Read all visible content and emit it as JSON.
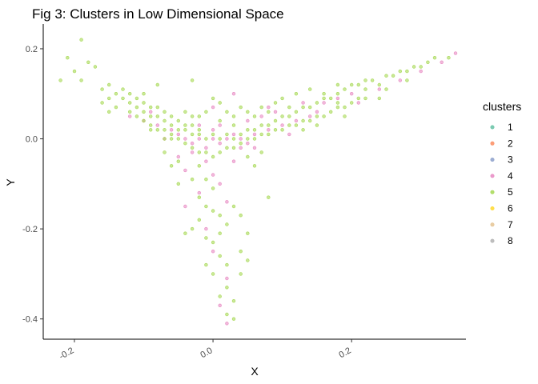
{
  "chart_data": {
    "type": "scatter",
    "title": "Fig 3: Clusters in Low Dimensional Space",
    "xlabel": "X",
    "ylabel": "Y",
    "xlim": [
      -0.245,
      0.365
    ],
    "ylim": [
      -0.445,
      0.255
    ],
    "x_ticks": [
      {
        "value": -0.2,
        "label": "-0.2"
      },
      {
        "value": 0.0,
        "label": "0.0"
      },
      {
        "value": 0.2,
        "label": "0.2"
      }
    ],
    "y_ticks": [
      {
        "value": 0.2,
        "label": "0.2"
      },
      {
        "value": 0.0,
        "label": "0.0"
      },
      {
        "value": -0.2,
        "label": "-0.2"
      },
      {
        "value": -0.4,
        "label": "-0.4"
      }
    ],
    "grid": false,
    "legend": {
      "title": "clusters",
      "placement": "right",
      "entries": [
        {
          "label": "1",
          "color": "#66c2a5"
        },
        {
          "label": "2",
          "color": "#fc8d62"
        },
        {
          "label": "3",
          "color": "#8da0cb"
        },
        {
          "label": "4",
          "color": "#e78ac3"
        },
        {
          "label": "5",
          "color": "#a6d854"
        },
        {
          "label": "6",
          "color": "#ffd92f"
        },
        {
          "label": "7",
          "color": "#e5c494"
        },
        {
          "label": "8",
          "color": "#b3b3b3"
        }
      ]
    },
    "series": [
      {
        "name": "4",
        "color": "#e78ac3",
        "points": [
          [
            -0.12,
            0.05
          ],
          [
            -0.1,
            0.04
          ],
          [
            -0.08,
            0.03
          ],
          [
            -0.06,
            0.02
          ],
          [
            -0.05,
            0.01
          ],
          [
            -0.04,
            0.0
          ],
          [
            -0.03,
            -0.01
          ],
          [
            -0.02,
            0.0
          ],
          [
            -0.01,
            -0.02
          ],
          [
            0.0,
            0.0
          ],
          [
            0.01,
            -0.01
          ],
          [
            0.02,
            0.0
          ],
          [
            0.03,
            0.01
          ],
          [
            0.04,
            0.0
          ],
          [
            0.05,
            -0.01
          ],
          [
            0.06,
            0.01
          ],
          [
            0.08,
            0.02
          ],
          [
            0.1,
            0.03
          ],
          [
            0.12,
            0.04
          ],
          [
            0.14,
            0.05
          ],
          [
            0.16,
            0.08
          ],
          [
            0.18,
            0.09
          ],
          [
            0.2,
            0.1
          ],
          [
            0.24,
            0.11
          ],
          [
            0.27,
            0.13
          ],
          [
            0.3,
            0.15
          ],
          [
            0.33,
            0.17
          ],
          [
            0.35,
            0.19
          ],
          [
            0.03,
            0.1
          ],
          [
            0.0,
            0.07
          ],
          [
            -0.02,
            0.03
          ],
          [
            0.05,
            0.04
          ],
          [
            0.07,
            0.05
          ],
          [
            0.09,
            0.06
          ],
          [
            -0.01,
            -0.05
          ],
          [
            0.0,
            -0.08
          ],
          [
            -0.02,
            -0.12
          ],
          [
            -0.04,
            -0.15
          ],
          [
            0.01,
            -0.1
          ],
          [
            0.02,
            -0.14
          ],
          [
            -0.01,
            -0.2
          ],
          [
            0.0,
            -0.25
          ],
          [
            0.02,
            -0.31
          ],
          [
            0.01,
            -0.37
          ],
          [
            0.02,
            -0.41
          ],
          [
            -0.03,
            -0.03
          ],
          [
            0.04,
            -0.02
          ],
          [
            0.11,
            0.01
          ],
          [
            -0.07,
            0.0
          ],
          [
            0.06,
            -0.02
          ],
          [
            0.13,
            0.08
          ],
          [
            -0.09,
            0.06
          ],
          [
            0.15,
            0.06
          ],
          [
            0.21,
            0.08
          ],
          [
            0.08,
            0.07
          ],
          [
            -0.05,
            -0.04
          ],
          [
            0.03,
            -0.05
          ],
          [
            0.0,
            0.02
          ],
          [
            0.01,
            0.03
          ],
          [
            -0.04,
            -0.07
          ]
        ]
      },
      {
        "name": "5",
        "color": "#a6d854",
        "points": [
          [
            -0.21,
            0.18
          ],
          [
            -0.19,
            0.22
          ],
          [
            -0.2,
            0.15
          ],
          [
            -0.18,
            0.17
          ],
          [
            -0.16,
            0.11
          ],
          [
            -0.19,
            0.13
          ],
          [
            -0.22,
            0.13
          ],
          [
            -0.17,
            0.16
          ],
          [
            -0.15,
            0.12
          ],
          [
            -0.14,
            0.1
          ],
          [
            -0.13,
            0.09
          ],
          [
            -0.12,
            0.08
          ],
          [
            -0.11,
            0.07
          ],
          [
            -0.1,
            0.06
          ],
          [
            -0.09,
            0.05
          ],
          [
            -0.08,
            0.05
          ],
          [
            -0.07,
            0.04
          ],
          [
            -0.06,
            0.03
          ],
          [
            -0.05,
            0.02
          ],
          [
            -0.04,
            0.02
          ],
          [
            -0.03,
            0.01
          ],
          [
            -0.02,
            0.01
          ],
          [
            -0.01,
            0.0
          ],
          [
            0.0,
            0.01
          ],
          [
            0.01,
            0.0
          ],
          [
            0.02,
            0.01
          ],
          [
            0.03,
            0.0
          ],
          [
            0.04,
            0.01
          ],
          [
            0.05,
            0.02
          ],
          [
            0.06,
            0.02
          ],
          [
            0.07,
            0.03
          ],
          [
            0.08,
            0.03
          ],
          [
            0.09,
            0.04
          ],
          [
            0.1,
            0.05
          ],
          [
            0.11,
            0.05
          ],
          [
            0.12,
            0.06
          ],
          [
            0.13,
            0.07
          ],
          [
            0.14,
            0.07
          ],
          [
            0.15,
            0.08
          ],
          [
            0.16,
            0.09
          ],
          [
            0.17,
            0.09
          ],
          [
            0.18,
            0.1
          ],
          [
            0.19,
            0.11
          ],
          [
            0.2,
            0.12
          ],
          [
            0.21,
            0.12
          ],
          [
            0.22,
            0.13
          ],
          [
            0.23,
            0.13
          ],
          [
            0.25,
            0.14
          ],
          [
            0.26,
            0.14
          ],
          [
            0.28,
            0.15
          ],
          [
            0.29,
            0.16
          ],
          [
            0.31,
            0.17
          ],
          [
            0.32,
            0.18
          ],
          [
            0.34,
            0.18
          ],
          [
            -0.13,
            0.11
          ],
          [
            -0.11,
            0.09
          ],
          [
            -0.1,
            0.08
          ],
          [
            -0.09,
            0.07
          ],
          [
            -0.08,
            0.07
          ],
          [
            -0.07,
            0.06
          ],
          [
            -0.06,
            0.05
          ],
          [
            -0.05,
            0.04
          ],
          [
            -0.04,
            0.03
          ],
          [
            -0.03,
            0.03
          ],
          [
            -0.02,
            0.02
          ],
          [
            -0.12,
            0.06
          ],
          [
            -0.11,
            0.05
          ],
          [
            -0.1,
            0.04
          ],
          [
            -0.09,
            0.03
          ],
          [
            -0.08,
            0.02
          ],
          [
            -0.07,
            0.02
          ],
          [
            -0.06,
            0.01
          ],
          [
            -0.05,
            0.0
          ],
          [
            -0.04,
            -0.01
          ],
          [
            -0.03,
            -0.02
          ],
          [
            -0.02,
            -0.03
          ],
          [
            -0.01,
            -0.03
          ],
          [
            0.0,
            -0.04
          ],
          [
            0.01,
            -0.03
          ],
          [
            0.02,
            -0.02
          ],
          [
            0.03,
            -0.02
          ],
          [
            0.04,
            -0.01
          ],
          [
            0.05,
            0.0
          ],
          [
            0.06,
            0.0
          ],
          [
            0.07,
            0.01
          ],
          [
            0.08,
            0.01
          ],
          [
            0.09,
            0.02
          ],
          [
            0.1,
            0.02
          ],
          [
            0.11,
            0.03
          ],
          [
            0.12,
            0.03
          ],
          [
            0.13,
            0.04
          ],
          [
            0.14,
            0.04
          ],
          [
            0.15,
            0.05
          ],
          [
            0.16,
            0.05
          ],
          [
            0.17,
            0.06
          ],
          [
            0.18,
            0.07
          ],
          [
            0.19,
            0.07
          ],
          [
            0.2,
            0.08
          ],
          [
            0.21,
            0.09
          ],
          [
            0.22,
            0.09
          ],
          [
            -0.02,
            -0.06
          ],
          [
            -0.03,
            -0.09
          ],
          [
            -0.01,
            -0.09
          ],
          [
            0.0,
            -0.11
          ],
          [
            -0.02,
            -0.13
          ],
          [
            -0.01,
            -0.15
          ],
          [
            0.0,
            -0.16
          ],
          [
            0.01,
            -0.17
          ],
          [
            -0.02,
            -0.18
          ],
          [
            0.03,
            -0.15
          ],
          [
            0.02,
            -0.19
          ],
          [
            0.01,
            -0.21
          ],
          [
            -0.01,
            -0.22
          ],
          [
            -0.03,
            -0.2
          ],
          [
            -0.04,
            -0.21
          ],
          [
            0.0,
            -0.23
          ],
          [
            0.01,
            -0.26
          ],
          [
            0.02,
            -0.28
          ],
          [
            -0.01,
            -0.28
          ],
          [
            0.0,
            -0.3
          ],
          [
            0.02,
            -0.33
          ],
          [
            0.01,
            -0.35
          ],
          [
            0.03,
            -0.36
          ],
          [
            0.02,
            -0.39
          ],
          [
            0.03,
            -0.4
          ],
          [
            0.04,
            -0.3
          ],
          [
            0.05,
            -0.27
          ],
          [
            0.04,
            -0.25
          ],
          [
            0.05,
            -0.21
          ],
          [
            0.04,
            -0.17
          ],
          [
            0.08,
            -0.13
          ],
          [
            -0.05,
            -0.1
          ],
          [
            -0.06,
            -0.06
          ],
          [
            -0.07,
            -0.03
          ],
          [
            -0.08,
            0.12
          ],
          [
            -0.03,
            0.13
          ],
          [
            0.0,
            0.09
          ],
          [
            0.02,
            0.06
          ],
          [
            0.04,
            0.07
          ],
          [
            0.06,
            0.05
          ],
          [
            0.08,
            0.06
          ],
          [
            0.1,
            0.09
          ],
          [
            0.12,
            0.1
          ],
          [
            0.14,
            0.11
          ],
          [
            0.16,
            0.1
          ],
          [
            0.18,
            0.12
          ],
          [
            0.24,
            0.09
          ],
          [
            0.19,
            0.05
          ],
          [
            0.09,
            0.08
          ],
          [
            0.11,
            0.07
          ],
          [
            -0.1,
            0.1
          ],
          [
            -0.12,
            0.1
          ],
          [
            -0.14,
            0.07
          ],
          [
            -0.15,
            0.09
          ],
          [
            -0.16,
            0.08
          ],
          [
            -0.15,
            0.06
          ],
          [
            -0.04,
            0.06
          ],
          [
            -0.02,
            0.05
          ],
          [
            0.01,
            0.04
          ],
          [
            0.07,
            0.07
          ],
          [
            0.13,
            0.02
          ],
          [
            0.15,
            0.03
          ],
          [
            0.03,
            0.03
          ],
          [
            -0.05,
            -0.05
          ],
          [
            0.05,
            -0.04
          ],
          [
            0.06,
            -0.06
          ],
          [
            0.07,
            -0.03
          ],
          [
            -0.06,
            0.0
          ],
          [
            -0.01,
            0.06
          ],
          [
            0.24,
            0.12
          ],
          [
            0.27,
            0.15
          ],
          [
            0.3,
            0.16
          ],
          [
            0.28,
            0.13
          ],
          [
            0.25,
            0.11
          ],
          [
            0.22,
            0.11
          ],
          [
            0.18,
            0.08
          ],
          [
            -0.09,
            0.02
          ],
          [
            -0.07,
            0.0
          ],
          [
            -0.03,
            0.05
          ],
          [
            0.01,
            0.08
          ],
          [
            0.03,
            0.05
          ],
          [
            0.05,
            0.06
          ]
        ]
      }
    ]
  }
}
